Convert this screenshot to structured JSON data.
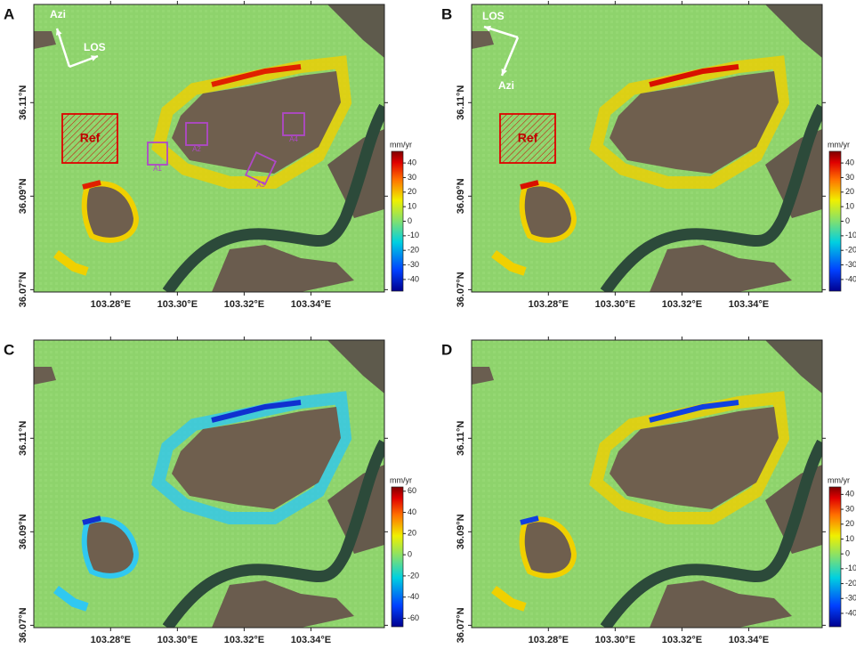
{
  "map_axes": {
    "xlim": [
      103.257,
      103.362
    ],
    "ylim": [
      36.0695,
      36.131
    ],
    "xticks": [
      {
        "value": 103.28,
        "label": "103.28°E"
      },
      {
        "value": 103.3,
        "label": "103.30°E"
      },
      {
        "value": 103.32,
        "label": "103.32°E"
      },
      {
        "value": 103.34,
        "label": "103.34°E"
      }
    ],
    "yticks": [
      {
        "value": 36.11,
        "label": "36.11°N"
      },
      {
        "value": 36.09,
        "label": "36.09°N"
      },
      {
        "value": 36.07,
        "label": "36.07°N"
      }
    ]
  },
  "panels": [
    {
      "label": "A",
      "colorbar": {
        "unit": "mm/yr",
        "lim": [
          -48,
          48
        ],
        "ticks": [
          40,
          30,
          20,
          10,
          0,
          -10,
          -20,
          -30,
          -40
        ]
      },
      "azi": "Azi",
      "los": "LOS",
      "ref": "Ref",
      "areas": [
        "A1",
        "A2",
        "A3",
        "A4"
      ]
    },
    {
      "label": "B",
      "colorbar": {
        "unit": "mm/yr",
        "lim": [
          -48,
          48
        ],
        "ticks": [
          40,
          30,
          20,
          10,
          0,
          -10,
          -20,
          -30,
          -40
        ]
      },
      "azi": "Azi",
      "los": "LOS",
      "ref": "Ref"
    },
    {
      "label": "C",
      "colorbar": {
        "unit": "mm/yr",
        "lim": [
          -68,
          64
        ],
        "ticks": [
          60,
          40,
          20,
          0,
          -20,
          -40,
          -60
        ]
      }
    },
    {
      "label": "D",
      "colorbar": {
        "unit": "mm/yr",
        "lim": [
          -49,
          45
        ],
        "ticks": [
          40,
          30,
          20,
          10,
          0,
          -10,
          -20,
          -30,
          -40
        ]
      }
    }
  ]
}
